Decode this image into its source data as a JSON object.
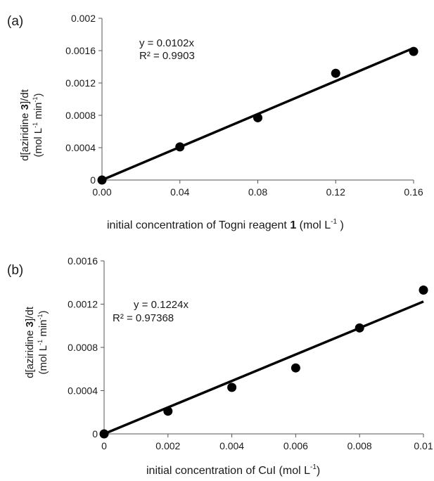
{
  "chart_data": [
    {
      "type": "scatter",
      "panel_label": "(a)",
      "xlabel": {
        "pre": "initial concentration of Togni reagent ",
        "bold": "1",
        "post": " (mol L",
        "sup": "-1",
        "end": " )"
      },
      "ylabel_line1": {
        "pre": "d[aziridine ",
        "bold": "3",
        "post": "]/dt"
      },
      "ylabel_line2": {
        "pre": "(mol L",
        "sup1": "-1",
        "mid": " min",
        "sup2": "-1",
        "post": ")"
      },
      "xlim": [
        0,
        0.16
      ],
      "ylim": [
        0,
        0.002
      ],
      "x_ticks": [
        "0.00",
        "0.04",
        "0.08",
        "0.12",
        "0.16"
      ],
      "y_ticks": [
        "0",
        "0.0004",
        "0.0008",
        "0.0012",
        "0.0016",
        "0.002"
      ],
      "x": [
        0,
        0.04,
        0.08,
        0.12,
        0.16
      ],
      "y": [
        0,
        0.00041,
        0.00077,
        0.00132,
        0.00159
      ],
      "trendline": {
        "slope": 0.0102,
        "equation": "y = 0.0102x",
        "r2": "R² = 0.9903"
      },
      "marker_color": "#000000",
      "line_color": "#000000",
      "grid": false
    },
    {
      "type": "scatter",
      "panel_label": "(b)",
      "xlabel": {
        "pre": "initial concentration of CuI (mol L",
        "sup": "-1",
        "end": ")"
      },
      "ylabel_line1": {
        "pre": "d[aziridine ",
        "bold": "3",
        "post": "]/dt"
      },
      "ylabel_line2": {
        "pre": "(mol L",
        "sup1": "-1",
        "mid": " min",
        "sup2": "-1",
        "post": ")"
      },
      "xlim": [
        0,
        0.01
      ],
      "ylim": [
        0,
        0.0016
      ],
      "x_ticks": [
        "0",
        "0.002",
        "0.004",
        "0.006",
        "0.008",
        "0.01"
      ],
      "y_ticks": [
        "0",
        "0.0004",
        "0.0008",
        "0.0012",
        "0.0016"
      ],
      "x": [
        0,
        0.002,
        0.004,
        0.006,
        0.008,
        0.01
      ],
      "y": [
        0,
        0.00021,
        0.00043,
        0.00061,
        0.00098,
        0.00133
      ],
      "trendline": {
        "slope": 0.1224,
        "equation": "y = 0.1224x",
        "r2": "R² = 0.97368"
      },
      "marker_color": "#000000",
      "line_color": "#000000",
      "grid": false
    }
  ]
}
